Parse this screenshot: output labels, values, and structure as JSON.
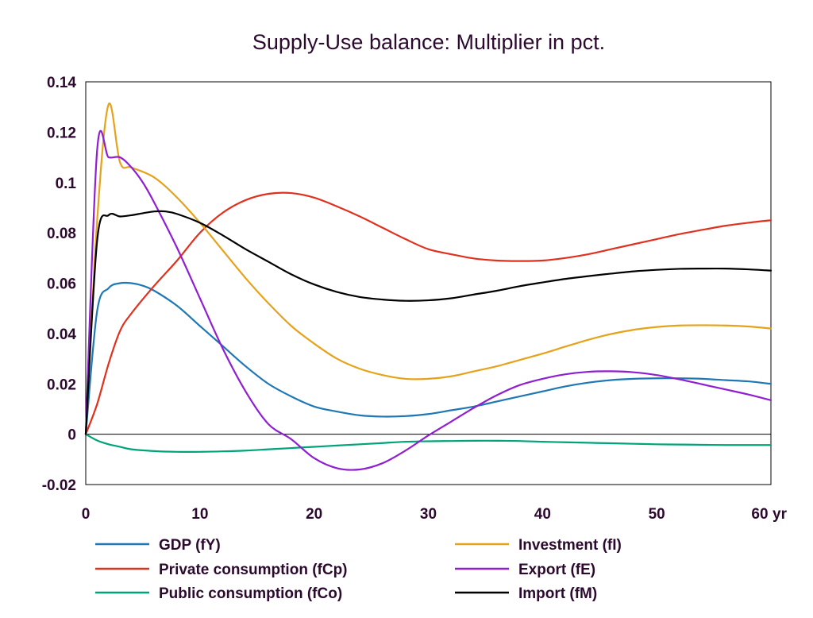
{
  "chart_data": {
    "type": "line",
    "title": "Supply-Use balance: Multiplier in pct.",
    "xlabel": "",
    "ylabel": "",
    "x_unit_label": "yr",
    "xlim": [
      0,
      60
    ],
    "ylim": [
      -0.02,
      0.14
    ],
    "x_ticks": [
      "0",
      "10",
      "20",
      "30",
      "40",
      "50",
      "60"
    ],
    "y_ticks": [
      "-0.02",
      "0",
      "0.02",
      "0.04",
      "0.06",
      "0.08",
      "0.1",
      "0.12",
      "0.14"
    ],
    "grid": false,
    "zero_line": true,
    "legend_position": "bottom",
    "series": [
      {
        "name": "GDP (fY)",
        "color": "#1f77b4",
        "x": [
          0,
          1,
          2,
          3,
          4,
          5,
          6,
          8,
          10,
          12,
          14,
          16,
          18,
          20,
          22,
          24,
          26,
          28,
          30,
          32,
          34,
          36,
          38,
          40,
          42,
          44,
          46,
          48,
          50,
          52,
          54,
          56,
          58,
          60
        ],
        "y": [
          0,
          0.049,
          0.058,
          0.06,
          0.06,
          0.059,
          0.057,
          0.051,
          0.043,
          0.035,
          0.027,
          0.02,
          0.015,
          0.011,
          0.009,
          0.0075,
          0.007,
          0.0072,
          0.008,
          0.0095,
          0.011,
          0.013,
          0.015,
          0.017,
          0.019,
          0.0205,
          0.0215,
          0.022,
          0.0222,
          0.0222,
          0.022,
          0.0215,
          0.021,
          0.02
        ]
      },
      {
        "name": "Private consumption (fCp)",
        "color": "#e0301e",
        "x": [
          0,
          1,
          2,
          3,
          4,
          6,
          8,
          10,
          12,
          14,
          16,
          18,
          20,
          22,
          24,
          26,
          28,
          30,
          32,
          34,
          36,
          38,
          40,
          42,
          44,
          46,
          48,
          50,
          52,
          54,
          56,
          58,
          60
        ],
        "y": [
          0,
          0.012,
          0.028,
          0.041,
          0.048,
          0.059,
          0.069,
          0.08,
          0.088,
          0.093,
          0.0955,
          0.0958,
          0.094,
          0.0905,
          0.0865,
          0.082,
          0.0775,
          0.0735,
          0.0715,
          0.0698,
          0.069,
          0.0688,
          0.069,
          0.07,
          0.0715,
          0.0735,
          0.0755,
          0.0775,
          0.0795,
          0.0812,
          0.0828,
          0.084,
          0.085
        ]
      },
      {
        "name": "Public consumption (fCo)",
        "color": "#00a37a",
        "x": [
          0,
          1,
          2,
          3,
          4,
          6,
          8,
          10,
          12,
          14,
          16,
          18,
          20,
          22,
          24,
          26,
          28,
          30,
          32,
          34,
          36,
          38,
          40,
          42,
          44,
          46,
          48,
          50,
          52,
          54,
          56,
          58,
          60
        ],
        "y": [
          0,
          -0.0025,
          -0.004,
          -0.005,
          -0.006,
          -0.0067,
          -0.007,
          -0.007,
          -0.0068,
          -0.0065,
          -0.006,
          -0.0055,
          -0.005,
          -0.0045,
          -0.004,
          -0.0035,
          -0.003,
          -0.0028,
          -0.0027,
          -0.0026,
          -0.0026,
          -0.0027,
          -0.003,
          -0.0032,
          -0.0034,
          -0.0036,
          -0.0038,
          -0.004,
          -0.0041,
          -0.0042,
          -0.0043,
          -0.0043,
          -0.0043
        ]
      },
      {
        "name": "Investment (fI)",
        "color": "#e6a21a",
        "x": [
          0,
          1,
          2,
          3,
          4,
          6,
          8,
          10,
          12,
          14,
          16,
          18,
          20,
          22,
          24,
          26,
          28,
          30,
          32,
          34,
          36,
          38,
          40,
          42,
          44,
          46,
          48,
          50,
          52,
          54,
          56,
          58,
          60
        ],
        "y": [
          0,
          0.085,
          0.131,
          0.108,
          0.106,
          0.102,
          0.094,
          0.084,
          0.073,
          0.062,
          0.052,
          0.043,
          0.036,
          0.03,
          0.026,
          0.0235,
          0.022,
          0.022,
          0.023,
          0.025,
          0.027,
          0.0295,
          0.032,
          0.0348,
          0.0375,
          0.0398,
          0.0415,
          0.0426,
          0.0432,
          0.0433,
          0.0432,
          0.0428,
          0.042
        ]
      },
      {
        "name": "Export (fE)",
        "color": "#8f1fd0",
        "x": [
          0,
          1,
          2,
          3,
          4,
          5,
          6,
          8,
          10,
          12,
          14,
          16,
          18,
          20,
          22,
          24,
          26,
          28,
          30,
          32,
          34,
          36,
          38,
          40,
          42,
          44,
          46,
          48,
          50,
          52,
          54,
          56,
          58,
          60
        ],
        "y": [
          0,
          0.113,
          0.11,
          0.11,
          0.106,
          0.1,
          0.092,
          0.074,
          0.054,
          0.034,
          0.017,
          0.004,
          -0.002,
          -0.0095,
          -0.0135,
          -0.014,
          -0.0115,
          -0.0065,
          -0.0005,
          0.005,
          0.0105,
          0.0155,
          0.0195,
          0.022,
          0.0238,
          0.0248,
          0.025,
          0.0246,
          0.0235,
          0.0218,
          0.0198,
          0.0178,
          0.0158,
          0.0135
        ]
      },
      {
        "name": "Import (fM)",
        "color": "#000000",
        "x": [
          0,
          1,
          2,
          3,
          4,
          5,
          6,
          7,
          8,
          10,
          12,
          14,
          16,
          18,
          20,
          22,
          24,
          26,
          28,
          30,
          32,
          34,
          36,
          38,
          40,
          42,
          44,
          46,
          48,
          50,
          52,
          54,
          56,
          58,
          60
        ],
        "y": [
          0,
          0.077,
          0.087,
          0.0865,
          0.087,
          0.0878,
          0.0885,
          0.0885,
          0.0875,
          0.084,
          0.079,
          0.0735,
          0.0685,
          0.0635,
          0.0595,
          0.0565,
          0.0545,
          0.0535,
          0.053,
          0.0532,
          0.054,
          0.0555,
          0.057,
          0.0588,
          0.0603,
          0.0617,
          0.0628,
          0.0638,
          0.0647,
          0.0653,
          0.0657,
          0.0658,
          0.0658,
          0.0655,
          0.065
        ]
      }
    ]
  }
}
